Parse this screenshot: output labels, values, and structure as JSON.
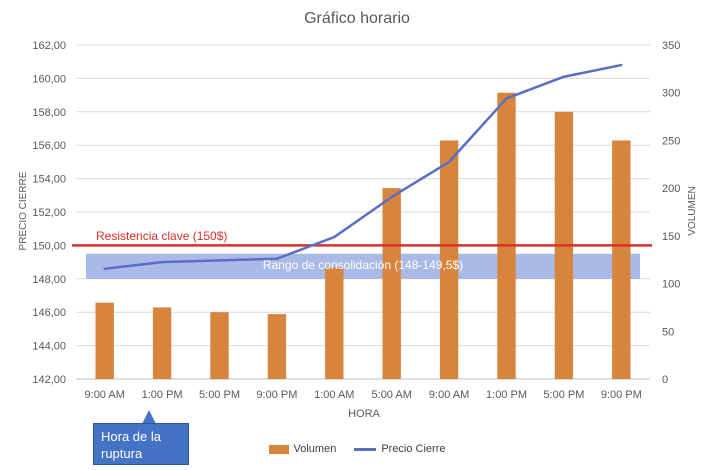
{
  "chart_data": {
    "type": "bar+line",
    "title": "Gráfico horario",
    "categories": [
      "9:00 AM",
      "1:00 PM",
      "5:00 PM",
      "9:00 PM",
      "1:00 AM",
      "5:00 AM",
      "9:00 AM",
      "1:00 PM",
      "5:00 PM",
      "9:00 PM"
    ],
    "xlabel": "HORA",
    "ylabel": "PRECIO CIERRE",
    "y2label": "VOLUMEN",
    "ylim": [
      142,
      162
    ],
    "y_ticks": [
      "142,00",
      "144,00",
      "146,00",
      "148,00",
      "150,00",
      "152,00",
      "154,00",
      "156,00",
      "158,00",
      "160,00",
      "162,00"
    ],
    "y2lim": [
      0,
      350
    ],
    "y2_ticks": [
      "0",
      "50",
      "100",
      "150",
      "200",
      "250",
      "300",
      "350"
    ],
    "grid": true,
    "legend_placement": "bottom",
    "series": [
      {
        "name": "Volumen",
        "kind": "bar",
        "axis": "secondary",
        "color": "#D7843D",
        "values": [
          80,
          75,
          70,
          68,
          117,
          200,
          250,
          300,
          280,
          250
        ]
      },
      {
        "name": "Precio Cierre",
        "kind": "line",
        "axis": "primary",
        "color": "#5B6EC6",
        "values": [
          148.6,
          149.0,
          149.1,
          149.2,
          150.5,
          152.9,
          155.0,
          158.8,
          160.1,
          160.8
        ]
      }
    ],
    "annotations": {
      "resistance": {
        "label": "Resistencia clave (150$)",
        "value": 150,
        "color": "#D9302B"
      },
      "consolidation": {
        "label": "Rango de consolidación (148-149,5$)",
        "from": 148,
        "to": 149.5,
        "color": "#8EA3DD"
      },
      "callout": {
        "label": "Hora de la ruptura"
      }
    }
  }
}
